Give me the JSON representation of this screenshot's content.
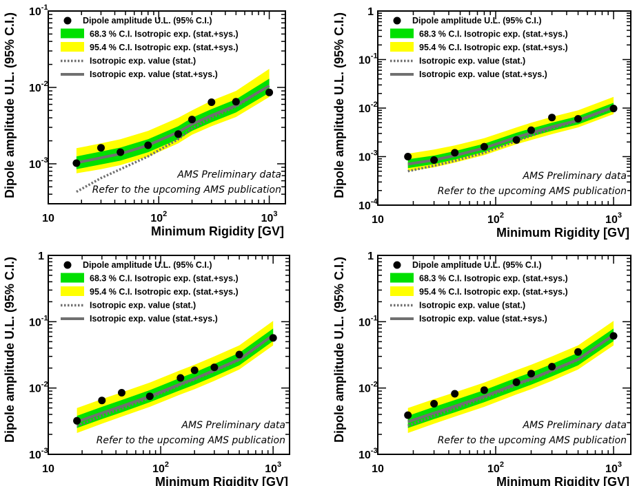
{
  "legend": {
    "points": "Dipole amplitude U.L. (95% C.I.)",
    "band68": "68.3 % C.I. Isotropic exp. (stat.+sys.)",
    "band95": "95.4 % C.I. Isotropic exp. (stat.+sys.)",
    "stat": "Isotropic exp. value (stat.)",
    "statsys": "Isotropic exp. value (stat.+sys.)"
  },
  "annotations": {
    "line1": "AMS Preliminary data",
    "line2": "Refer to the upcoming AMS publication"
  },
  "colors": {
    "band68": "#00e000",
    "band95": "#ffff00",
    "expected_line": "#707070",
    "points": "#000000"
  },
  "chart_data": [
    {
      "type": "line",
      "xscale": "log",
      "yscale": "log",
      "xlabel": "Minimum Rigidity [GV]",
      "ylabel": "Dipole amplitude U.L. (95% C.I.)",
      "xlim": [
        10,
        1400
      ],
      "ylim": [
        0.0003,
        0.1
      ],
      "yticks": [
        {
          "b": "10",
          "e": "-3"
        },
        {
          "b": "10",
          "e": "-2"
        },
        {
          "b": "10",
          "e": "-1"
        }
      ],
      "xticks": [
        {
          "b": "10",
          "e": ""
        },
        {
          "b": "10",
          "e": "2"
        },
        {
          "b": "10",
          "e": "3"
        }
      ],
      "x": [
        18,
        30,
        45,
        80,
        150,
        200,
        300,
        500,
        1000
      ],
      "upper_limits": [
        0.00102,
        0.00162,
        0.00142,
        0.00175,
        0.00245,
        0.0038,
        0.0064,
        0.0065,
        0.0086
      ],
      "expected_stat_sys": [
        0.00103,
        0.0012,
        0.00135,
        0.00175,
        0.0026,
        0.0033,
        0.0043,
        0.0058,
        0.0105
      ],
      "expected_stat": [
        0.00043,
        0.00065,
        0.00085,
        0.00125,
        0.0021,
        0.0029,
        0.004,
        0.0056,
        0.0105
      ],
      "band68_lower": [
        0.00085,
        0.00098,
        0.0011,
        0.00142,
        0.0021,
        0.0027,
        0.0035,
        0.0047,
        0.0085
      ],
      "band68_upper": [
        0.00125,
        0.00145,
        0.00163,
        0.0021,
        0.0031,
        0.004,
        0.0052,
        0.007,
        0.013
      ],
      "band95_lower": [
        0.00075,
        0.00085,
        0.00096,
        0.00124,
        0.00185,
        0.0024,
        0.0031,
        0.0041,
        0.0075
      ],
      "band95_upper": [
        0.0016,
        0.00185,
        0.0021,
        0.0027,
        0.004,
        0.005,
        0.0067,
        0.009,
        0.0175
      ]
    },
    {
      "type": "line",
      "xscale": "log",
      "yscale": "log",
      "xlabel": "Minimum Rigidity [GV]",
      "ylabel": "Dipole amplitude U.L. (95% C.I.)",
      "xlim": [
        10,
        1400
      ],
      "ylim": [
        0.0001,
        1
      ],
      "yticks": [
        {
          "b": "10",
          "e": "-4"
        },
        {
          "b": "10",
          "e": "-3"
        },
        {
          "b": "10",
          "e": "-2"
        },
        {
          "b": "10",
          "e": "-1"
        },
        {
          "b": "1",
          "e": ""
        }
      ],
      "xticks": [
        {
          "b": "10",
          "e": ""
        },
        {
          "b": "10",
          "e": "2"
        },
        {
          "b": "10",
          "e": "3"
        }
      ],
      "x": [
        18,
        30,
        45,
        80,
        150,
        200,
        300,
        500,
        1000
      ],
      "upper_limits": [
        0.001,
        0.00085,
        0.0012,
        0.0016,
        0.0022,
        0.0035,
        0.0064,
        0.006,
        0.0098
      ],
      "expected_stat_sys": [
        0.0007,
        0.00085,
        0.00105,
        0.0015,
        0.0025,
        0.0031,
        0.0041,
        0.0056,
        0.0105
      ],
      "expected_stat": [
        0.0005,
        0.00065,
        0.00082,
        0.0012,
        0.0021,
        0.0027,
        0.0038,
        0.0054,
        0.0102
      ],
      "band68_lower": [
        0.00058,
        0.0007,
        0.00087,
        0.00125,
        0.0021,
        0.0026,
        0.0034,
        0.0046,
        0.0086
      ],
      "band68_upper": [
        0.00088,
        0.00105,
        0.0013,
        0.00185,
        0.0031,
        0.0038,
        0.005,
        0.0068,
        0.0128
      ],
      "band95_lower": [
        0.0005,
        0.0006,
        0.00075,
        0.00107,
        0.0018,
        0.0022,
        0.0029,
        0.004,
        0.0075
      ],
      "band95_upper": [
        0.00115,
        0.0014,
        0.0017,
        0.0024,
        0.004,
        0.005,
        0.0066,
        0.009,
        0.017
      ]
    },
    {
      "type": "line",
      "xscale": "log",
      "yscale": "log",
      "xlabel": "Minimum Rigidity [GV]",
      "ylabel": "Dipole amplitude U.L. (95% C.I.)",
      "xlim": [
        10,
        1400
      ],
      "ylim": [
        0.001,
        1
      ],
      "yticks": [
        {
          "b": "10",
          "e": "-3"
        },
        {
          "b": "10",
          "e": "-2"
        },
        {
          "b": "10",
          "e": "-1"
        },
        {
          "b": "1",
          "e": ""
        }
      ],
      "xticks": [
        {
          "b": "10",
          "e": ""
        },
        {
          "b": "10",
          "e": "2"
        },
        {
          "b": "10",
          "e": "3"
        }
      ],
      "x": [
        18,
        30,
        45,
        80,
        150,
        200,
        300,
        500,
        1000
      ],
      "upper_limits": [
        0.0032,
        0.0065,
        0.0085,
        0.0075,
        0.0142,
        0.0185,
        0.0205,
        0.032,
        0.057
      ],
      "expected_stat_sys": [
        0.0031,
        0.0042,
        0.0053,
        0.0075,
        0.0115,
        0.0138,
        0.0185,
        0.027,
        0.063
      ],
      "expected_stat": [
        0.0027,
        0.0038,
        0.0049,
        0.0071,
        0.0111,
        0.0134,
        0.018,
        0.0265,
        0.062
      ],
      "band68_lower": [
        0.0025,
        0.0034,
        0.0043,
        0.0061,
        0.0093,
        0.0112,
        0.015,
        0.022,
        0.051
      ],
      "band68_upper": [
        0.0038,
        0.0052,
        0.0066,
        0.0093,
        0.0143,
        0.0172,
        0.023,
        0.034,
        0.079
      ],
      "band95_lower": [
        0.0021,
        0.0029,
        0.0037,
        0.0052,
        0.008,
        0.0096,
        0.0128,
        0.019,
        0.044
      ],
      "band95_upper": [
        0.005,
        0.0068,
        0.0086,
        0.0121,
        0.0186,
        0.0224,
        0.03,
        0.044,
        0.103
      ]
    },
    {
      "type": "line",
      "xscale": "log",
      "yscale": "log",
      "xlabel": "Minimum Rigidity [GV]",
      "ylabel": "Dipole amplitude U.L. (95% C.I.)",
      "xlim": [
        10,
        1400
      ],
      "ylim": [
        0.001,
        1
      ],
      "yticks": [
        {
          "b": "10",
          "e": "-3"
        },
        {
          "b": "10",
          "e": "-2"
        },
        {
          "b": "10",
          "e": "-1"
        },
        {
          "b": "1",
          "e": ""
        }
      ],
      "xticks": [
        {
          "b": "10",
          "e": ""
        },
        {
          "b": "10",
          "e": "2"
        },
        {
          "b": "10",
          "e": "3"
        }
      ],
      "x": [
        18,
        30,
        45,
        80,
        150,
        200,
        300,
        500,
        1000
      ],
      "upper_limits": [
        0.0039,
        0.0058,
        0.0082,
        0.0093,
        0.0122,
        0.0165,
        0.021,
        0.035,
        0.061
      ],
      "expected_stat_sys": [
        0.0031,
        0.0042,
        0.0053,
        0.0075,
        0.0115,
        0.0138,
        0.0185,
        0.027,
        0.063
      ],
      "expected_stat": [
        0.0027,
        0.0038,
        0.0049,
        0.0071,
        0.0111,
        0.0134,
        0.018,
        0.0265,
        0.062
      ],
      "band68_lower": [
        0.0025,
        0.0034,
        0.0043,
        0.0061,
        0.0093,
        0.0112,
        0.015,
        0.022,
        0.051
      ],
      "band68_upper": [
        0.0038,
        0.0052,
        0.0066,
        0.0093,
        0.0143,
        0.0172,
        0.023,
        0.034,
        0.079
      ],
      "band95_lower": [
        0.0021,
        0.0029,
        0.0037,
        0.0052,
        0.008,
        0.0096,
        0.0128,
        0.019,
        0.044
      ],
      "band95_upper": [
        0.005,
        0.0068,
        0.0086,
        0.0121,
        0.0186,
        0.0224,
        0.03,
        0.044,
        0.103
      ]
    }
  ]
}
